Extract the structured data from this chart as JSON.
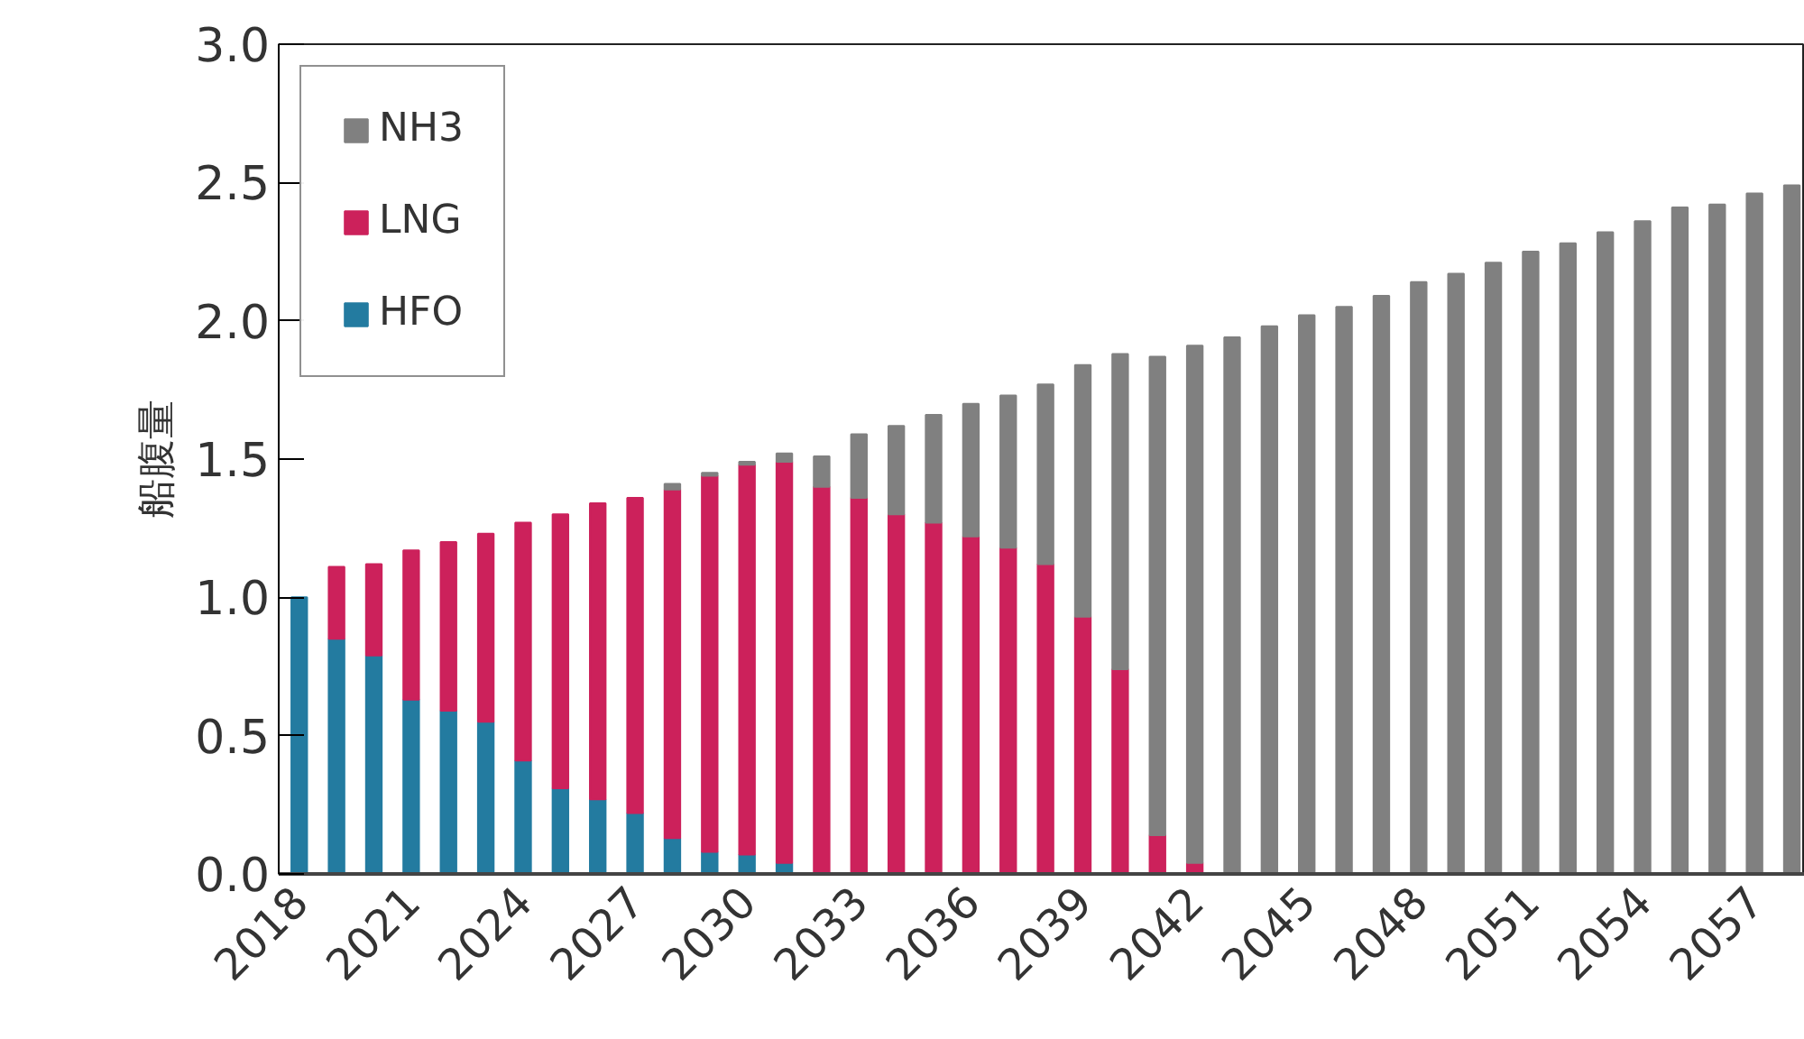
{
  "chart_data": {
    "type": "bar",
    "stacked": true,
    "ylabel": "船腹量",
    "categories": [
      "2018",
      null,
      null,
      "2021",
      null,
      null,
      "2024",
      null,
      null,
      "2027",
      null,
      null,
      "2030",
      null,
      null,
      "2033",
      null,
      null,
      "2036",
      null,
      null,
      "2039",
      null,
      null,
      "2042",
      null,
      null,
      "2045",
      null,
      null,
      "2048",
      null,
      null,
      "2051",
      null,
      null,
      "2054",
      null,
      null,
      "2057",
      null
    ],
    "series": [
      {
        "name": "HFO",
        "color": "#237ba0",
        "values": [
          1.0,
          0.85,
          0.79,
          0.63,
          0.59,
          0.55,
          0.41,
          0.31,
          0.27,
          0.22,
          0.13,
          0.08,
          0.07,
          0.04,
          null,
          null,
          null,
          null,
          null,
          null,
          null,
          null,
          null,
          null,
          null,
          null,
          null,
          null,
          null,
          null,
          null,
          null,
          null,
          null,
          null,
          null,
          null,
          null,
          null,
          null,
          null
        ]
      },
      {
        "name": "LNG",
        "color": "#cc215b",
        "values": [
          null,
          0.26,
          0.33,
          0.54,
          0.61,
          0.68,
          0.86,
          0.99,
          1.07,
          1.14,
          1.26,
          1.36,
          1.41,
          1.45,
          1.4,
          1.36,
          1.3,
          1.27,
          1.22,
          1.18,
          1.12,
          0.93,
          0.74,
          0.14,
          0.04,
          null,
          null,
          null,
          null,
          null,
          null,
          null,
          null,
          null,
          null,
          null,
          null,
          null,
          null,
          null,
          null
        ]
      },
      {
        "name": "NH3",
        "color": "#808080",
        "values": [
          null,
          null,
          null,
          null,
          null,
          null,
          null,
          null,
          null,
          null,
          0.02,
          0.01,
          0.01,
          0.03,
          0.11,
          0.23,
          0.32,
          0.39,
          0.48,
          0.55,
          0.65,
          0.91,
          1.14,
          1.73,
          1.87,
          1.94,
          1.98,
          2.02,
          2.05,
          2.09,
          2.14,
          2.17,
          2.21,
          2.25,
          2.28,
          2.32,
          2.36,
          2.41,
          2.42,
          2.46,
          2.49
        ]
      }
    ],
    "ylim": [
      0,
      3.0
    ],
    "yticks": [
      {
        "value": 0,
        "label": "0.0"
      },
      {
        "value": 0.5,
        "label": "0.5"
      },
      {
        "value": 1,
        "label": "1.0"
      },
      {
        "value": 1.5,
        "label": "1.5"
      },
      {
        "value": 2,
        "label": "2.0"
      },
      {
        "value": 2.5,
        "label": "2.5"
      },
      {
        "value": 3,
        "label": "3.0"
      }
    ],
    "legend": "top left",
    "grid": false
  }
}
